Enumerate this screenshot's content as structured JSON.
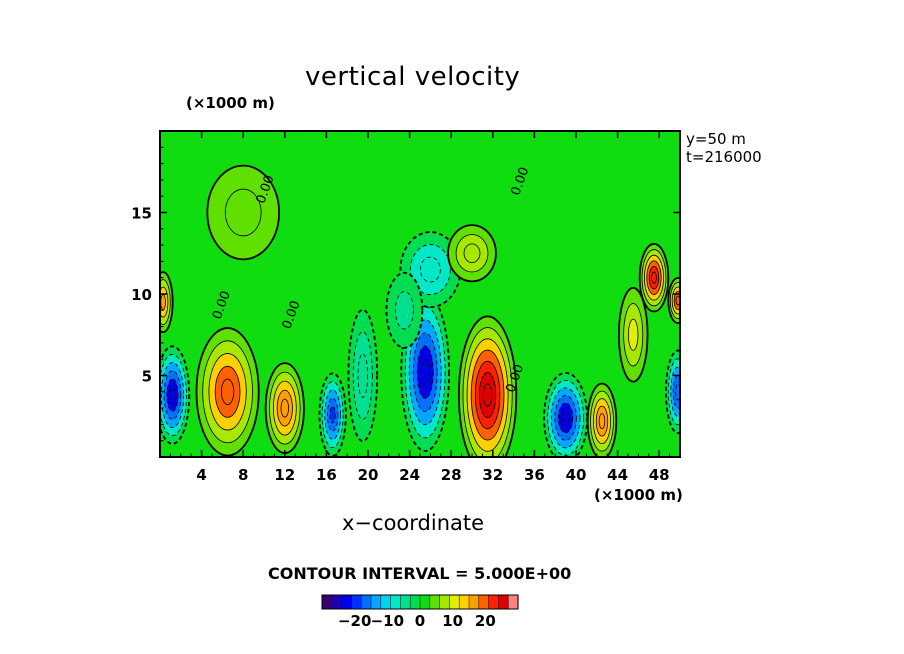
{
  "chart_data": {
    "type": "heatmap",
    "title": "vertical velocity",
    "xlabel": "x−coordinate",
    "x_unit": "(×1000 m)",
    "y_unit": "(×1000 m)",
    "xlim": [
      0,
      50
    ],
    "ylim": [
      0,
      20
    ],
    "x_ticks": [
      4,
      8,
      12,
      16,
      20,
      24,
      28,
      32,
      36,
      40,
      44,
      48
    ],
    "y_ticks": [
      5,
      10,
      15
    ],
    "info": [
      "y=50  m",
      "t=216000"
    ],
    "contour_interval_label": "CONTOUR INTERVAL = 5.000E+00",
    "contour_zero_label": "0.00",
    "colorbar": {
      "ticks": [
        -20,
        -10,
        0,
        10,
        20
      ],
      "tick_labels": [
        "−20",
        "−10",
        "0",
        "10",
        "20"
      ],
      "range": [
        -30,
        30
      ],
      "colors": [
        "#3a0070",
        "#1e00b0",
        "#0000e6",
        "#0030ff",
        "#0070ff",
        "#00a8ff",
        "#00d4f0",
        "#00e8c8",
        "#00e090",
        "#00dd50",
        "#10dd10",
        "#60e000",
        "#a8e800",
        "#e0ee00",
        "#ffd000",
        "#ffa000",
        "#ff6000",
        "#ff2000",
        "#e00000",
        "#ff8080"
      ]
    },
    "blobs": [
      {
        "x": 1.2,
        "y": 3.8,
        "value": -22,
        "rx": 1.4,
        "ry": 2.6
      },
      {
        "x": 6.5,
        "y": 4.0,
        "value": 19,
        "rx": 2.6,
        "ry": 3.4
      },
      {
        "x": 12.0,
        "y": 3.0,
        "value": 16,
        "rx": 1.6,
        "ry": 2.4
      },
      {
        "x": 16.6,
        "y": 2.6,
        "value": -20,
        "rx": 1.1,
        "ry": 2.2
      },
      {
        "x": 19.5,
        "y": 5.0,
        "value": -6,
        "rx": 1.2,
        "ry": 3.5
      },
      {
        "x": 25.5,
        "y": 5.2,
        "value": -22,
        "rx": 2.0,
        "ry": 4.2
      },
      {
        "x": 31.5,
        "y": 3.8,
        "value": 26,
        "rx": 2.4,
        "ry": 4.2
      },
      {
        "x": 39.0,
        "y": 2.4,
        "value": -22,
        "rx": 1.8,
        "ry": 2.4
      },
      {
        "x": 42.5,
        "y": 2.2,
        "value": 17,
        "rx": 1.2,
        "ry": 2.0
      },
      {
        "x": 49.8,
        "y": 4.0,
        "value": -18,
        "rx": 1.0,
        "ry": 2.2
      },
      {
        "x": 0.3,
        "y": 9.5,
        "value": 15,
        "rx": 0.8,
        "ry": 1.6
      },
      {
        "x": 47.5,
        "y": 11.0,
        "value": 22,
        "rx": 1.2,
        "ry": 1.8
      },
      {
        "x": 49.8,
        "y": 9.6,
        "value": 18,
        "rx": 0.8,
        "ry": 1.2
      },
      {
        "x": 45.5,
        "y": 7.5,
        "value": 10,
        "rx": 1.2,
        "ry": 2.5
      },
      {
        "x": 26.0,
        "y": 11.5,
        "value": -8,
        "rx": 2.5,
        "ry": 2.0
      },
      {
        "x": 30.0,
        "y": 12.5,
        "value": 6,
        "rx": 2.0,
        "ry": 1.5
      },
      {
        "x": 23.5,
        "y": 9.0,
        "value": -5,
        "rx": 1.5,
        "ry": 2.0
      },
      {
        "x": 8.0,
        "y": 15.0,
        "value": 4,
        "rx": 3.0,
        "ry": 2.5
      }
    ]
  }
}
